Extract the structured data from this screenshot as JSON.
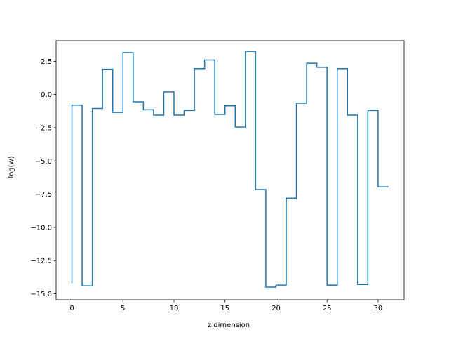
{
  "chart_data": {
    "type": "line",
    "style": "step",
    "xlabel": "z dimension",
    "ylabel": "log(w)",
    "xlim": [
      -1.55,
      32.55
    ],
    "ylim": [
      -15.45,
      4.05
    ],
    "xticks": [
      0,
      5,
      10,
      15,
      20,
      25,
      30
    ],
    "xtick_labels": [
      "0",
      "5",
      "10",
      "15",
      "20",
      "25",
      "30"
    ],
    "yticks": [
      2.5,
      0.0,
      -2.5,
      -5.0,
      -7.5,
      -10.0,
      -12.5,
      -15.0
    ],
    "ytick_labels": [
      "2.5",
      "0.0",
      "−2.5",
      "−5.0",
      "−7.5",
      "−10.0",
      "−12.5",
      "−15.0"
    ],
    "grid": false,
    "line_color": "#1f77b4",
    "x": [
      0,
      1,
      2,
      3,
      4,
      5,
      6,
      7,
      8,
      9,
      10,
      11,
      12,
      13,
      14,
      15,
      16,
      17,
      18,
      19,
      20,
      21,
      22,
      23,
      24,
      25,
      26,
      27,
      28,
      29,
      30,
      31
    ],
    "values": [
      -14.2,
      -0.8,
      -14.4,
      -1.05,
      1.9,
      -1.35,
      3.15,
      -0.55,
      -1.15,
      -1.55,
      0.2,
      -1.55,
      -1.2,
      1.95,
      2.6,
      -1.5,
      -0.85,
      -2.45,
      3.25,
      -7.15,
      -14.5,
      -14.35,
      -7.8,
      -0.65,
      2.35,
      2.05,
      -14.35,
      1.95,
      -1.55,
      -14.3,
      -1.2,
      -6.95
    ]
  }
}
